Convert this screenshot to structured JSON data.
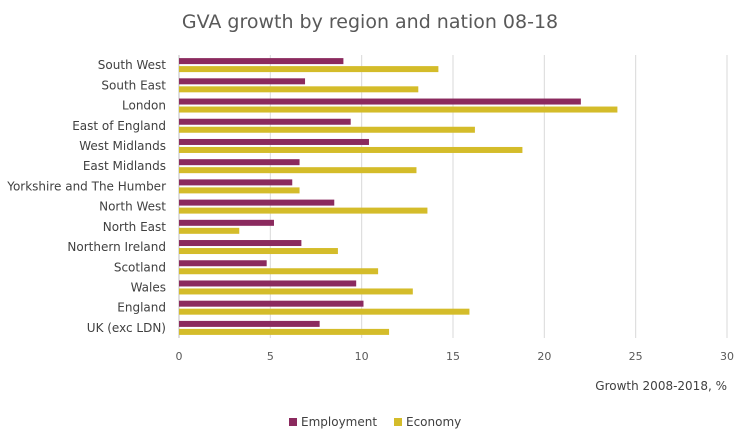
{
  "chart_data": {
    "type": "bar",
    "orientation": "horizontal",
    "title": "GVA growth by region and nation 08-18",
    "xlabel": "Growth 2008-2018, %",
    "ylabel": "",
    "xlim": [
      0,
      30
    ],
    "x_ticks": [
      0,
      5,
      10,
      15,
      20,
      25,
      30
    ],
    "grid": true,
    "legend_position": "bottom",
    "categories": [
      "South West",
      "South East",
      "London",
      "East of England",
      "West Midlands",
      "East Midlands",
      "Yorkshire and The Humber",
      "North West",
      "North East",
      "Northern Ireland",
      "Scotland",
      "Wales",
      "England",
      "UK (exc LDN)"
    ],
    "series": [
      {
        "name": "Employment",
        "color": "#8b2a5e",
        "values": [
          9.0,
          6.9,
          22.0,
          9.4,
          10.4,
          6.6,
          6.2,
          8.5,
          5.2,
          6.7,
          4.8,
          9.7,
          10.1,
          7.7
        ]
      },
      {
        "name": "Economy",
        "color": "#d4bc2a",
        "values": [
          14.2,
          13.1,
          24.0,
          16.2,
          18.8,
          13.0,
          6.6,
          13.6,
          3.3,
          8.7,
          10.9,
          12.8,
          15.9,
          11.5
        ]
      }
    ]
  },
  "colors": {
    "grid": "#d9d9d9",
    "axis": "#bfbfbf",
    "text": "#404040"
  }
}
